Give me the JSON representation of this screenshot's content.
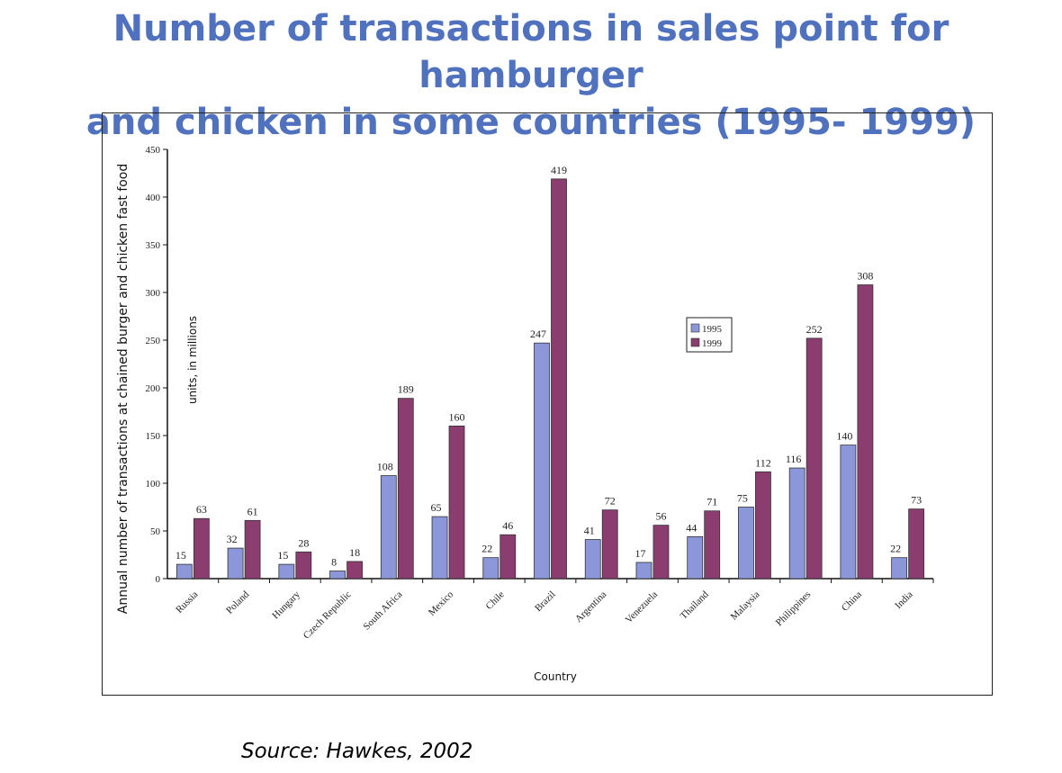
{
  "title_line1": "Number of transactions in sales point for hamburger",
  "title_line2": "and chicken in some countries (1995- 1999)",
  "source": "Source: Hawkes, 2002",
  "colors": {
    "title": "#4f71be",
    "s1995": "#8b97d9",
    "s1999": "#8a3d6e"
  },
  "chart_data": {
    "type": "bar",
    "xlabel": "Country",
    "ylabel": "Annual number of transactions at chained burger and chicken fast food",
    "annotation": "units, in millions",
    "ylim": [
      0,
      450
    ],
    "yticks": [
      0,
      50,
      100,
      150,
      200,
      250,
      300,
      350,
      400,
      450
    ],
    "legend_position": "center-right",
    "categories": [
      "Russia",
      "Poland",
      "Hungary",
      "Czech Republic",
      "South Africa",
      "Mexico",
      "Chile",
      "Brazil",
      "Argentina",
      "Venezuela",
      "Thailand",
      "Malaysia",
      "Philippines",
      "China",
      "India"
    ],
    "series": [
      {
        "name": "1995",
        "values": [
          15,
          32,
          15,
          8,
          108,
          65,
          22,
          247,
          41,
          17,
          44,
          75,
          116,
          140,
          22
        ]
      },
      {
        "name": "1999",
        "values": [
          63,
          61,
          28,
          18,
          189,
          160,
          46,
          419,
          72,
          56,
          71,
          112,
          252,
          308,
          73
        ]
      }
    ]
  }
}
